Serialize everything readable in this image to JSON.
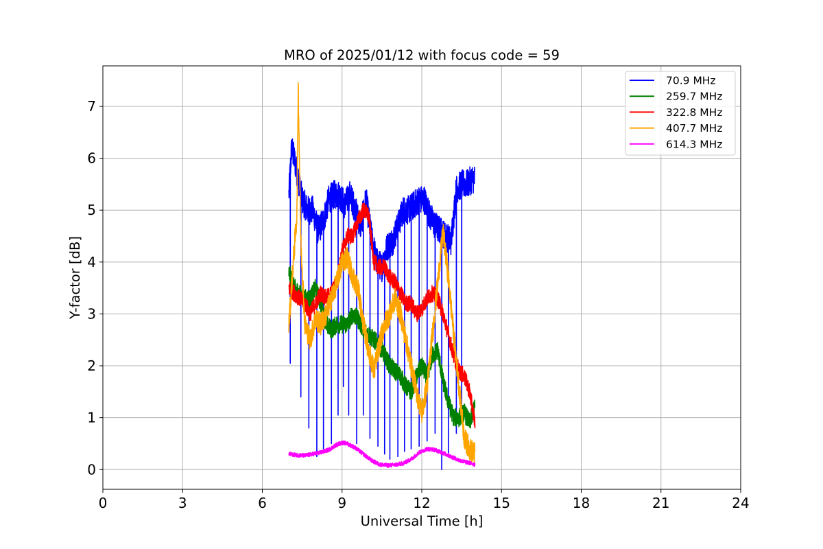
{
  "chart_data": {
    "type": "line",
    "title": "MRO of 2025/01/12 with focus code = 59",
    "xlabel": "Universal Time [h]",
    "ylabel": "Y-factor [dB]",
    "xlim": [
      0,
      24
    ],
    "ylim": [
      -0.38,
      7.78
    ],
    "xticks": [
      0,
      3,
      6,
      9,
      12,
      15,
      18,
      21,
      24
    ],
    "yticks": [
      0,
      1,
      2,
      3,
      4,
      5,
      6,
      7
    ],
    "grid": true,
    "legend_position": "top-right",
    "series": [
      {
        "name": " 70.9 MHz",
        "color": "#0000ff",
        "x": [
          7.0,
          7.1,
          7.2,
          7.35,
          7.5,
          7.7,
          7.9,
          8.1,
          8.3,
          8.5,
          8.7,
          8.9,
          9.1,
          9.3,
          9.5,
          9.7,
          9.9,
          10.1,
          10.3,
          10.5,
          10.7,
          10.9,
          11.1,
          11.3,
          11.5,
          11.7,
          11.9,
          12.1,
          12.3,
          12.5,
          12.7,
          12.9,
          13.1,
          13.3,
          13.5,
          13.7,
          13.9,
          14.0
        ],
        "y": [
          5.3,
          6.2,
          6.0,
          5.6,
          5.2,
          5.0,
          5.0,
          4.6,
          4.8,
          5.2,
          5.3,
          5.3,
          5.1,
          5.3,
          5.0,
          4.7,
          5.2,
          4.5,
          4.0,
          3.9,
          4.3,
          4.4,
          4.7,
          5.0,
          5.0,
          5.1,
          5.2,
          5.2,
          4.9,
          4.7,
          4.6,
          4.5,
          4.4,
          5.4,
          5.5,
          5.5,
          5.6,
          5.6
        ],
        "dips": [
          [
            7.05,
            2.05
          ],
          [
            7.45,
            1.4
          ],
          [
            7.75,
            0.8
          ],
          [
            8.05,
            0.25
          ],
          [
            8.3,
            0.4
          ],
          [
            8.6,
            0.5
          ],
          [
            8.85,
            1.05
          ],
          [
            9.05,
            1.6
          ],
          [
            9.25,
            1.05
          ],
          [
            9.55,
            0.5
          ],
          [
            9.8,
            1.05
          ],
          [
            10.05,
            0.6
          ],
          [
            10.35,
            0.45
          ],
          [
            10.6,
            0.3
          ],
          [
            10.8,
            0.2
          ],
          [
            11.1,
            0.25
          ],
          [
            11.35,
            0.35
          ],
          [
            11.6,
            0.4
          ],
          [
            11.9,
            0.45
          ],
          [
            12.2,
            0.55
          ],
          [
            12.5,
            0.7
          ],
          [
            12.75,
            0.0
          ],
          [
            13.0,
            0.25
          ],
          [
            13.3,
            0.7
          ],
          [
            13.5,
            0.9
          ]
        ],
        "noise": 0.28
      },
      {
        "name": "259.7 MHz",
        "color": "#008000",
        "x": [
          7.0,
          7.2,
          7.4,
          7.6,
          7.8,
          8.0,
          8.2,
          8.4,
          8.6,
          8.8,
          9.0,
          9.2,
          9.4,
          9.6,
          9.8,
          10.0,
          10.2,
          10.4,
          10.6,
          10.8,
          11.0,
          11.2,
          11.4,
          11.6,
          11.8,
          12.0,
          12.2,
          12.4,
          12.6,
          12.8,
          13.0,
          13.2,
          13.4,
          13.6,
          13.8,
          14.0
        ],
        "y": [
          3.8,
          3.5,
          3.4,
          3.3,
          3.3,
          3.5,
          3.2,
          2.8,
          2.7,
          2.8,
          2.8,
          2.8,
          3.0,
          2.9,
          2.7,
          2.6,
          2.5,
          2.4,
          2.2,
          2.0,
          1.9,
          1.8,
          1.6,
          1.5,
          1.8,
          2.0,
          1.8,
          2.2,
          2.3,
          1.7,
          1.3,
          1.0,
          1.0,
          1.1,
          0.9,
          1.2
        ],
        "noise": 0.18
      },
      {
        "name": "322.8 MHz",
        "color": "#ff0000",
        "x": [
          7.0,
          7.2,
          7.4,
          7.6,
          7.8,
          8.0,
          8.2,
          8.4,
          8.6,
          8.8,
          9.0,
          9.2,
          9.4,
          9.6,
          9.8,
          10.0,
          10.2,
          10.4,
          10.6,
          10.8,
          11.0,
          11.2,
          11.4,
          11.6,
          11.8,
          12.0,
          12.2,
          12.4,
          12.6,
          12.8,
          13.0,
          13.2,
          13.4,
          13.6,
          13.8,
          14.0
        ],
        "y": [
          3.5,
          3.4,
          3.3,
          3.2,
          3.0,
          3.2,
          3.4,
          3.3,
          3.4,
          3.6,
          4.2,
          4.5,
          4.5,
          4.8,
          5.0,
          4.9,
          4.0,
          3.9,
          3.9,
          3.7,
          3.6,
          3.4,
          3.2,
          3.2,
          3.0,
          3.1,
          3.3,
          3.4,
          3.3,
          3.0,
          2.6,
          2.2,
          1.9,
          1.8,
          1.5,
          0.9
        ],
        "noise": 0.16
      },
      {
        "name": "407.7 MHz",
        "color": "#ffa500",
        "x": [
          7.0,
          7.15,
          7.3,
          7.35,
          7.45,
          7.6,
          7.8,
          8.0,
          8.2,
          8.4,
          8.6,
          8.8,
          9.0,
          9.2,
          9.4,
          9.6,
          9.8,
          10.0,
          10.2,
          10.4,
          10.6,
          10.8,
          11.0,
          11.2,
          11.4,
          11.6,
          11.8,
          12.0,
          12.2,
          12.4,
          12.6,
          12.8,
          13.0,
          13.2,
          13.4,
          13.6,
          13.8,
          14.0
        ],
        "y": [
          2.8,
          3.9,
          4.9,
          7.4,
          4.4,
          2.8,
          2.5,
          2.9,
          2.8,
          3.0,
          3.3,
          3.6,
          4.0,
          4.1,
          3.7,
          3.5,
          2.8,
          2.3,
          1.9,
          2.4,
          2.8,
          3.0,
          3.3,
          3.0,
          2.5,
          2.0,
          1.5,
          1.1,
          1.6,
          2.6,
          3.6,
          4.6,
          3.7,
          2.6,
          1.6,
          0.6,
          0.4,
          0.3
        ],
        "noise": 0.22
      },
      {
        "name": "614.3 MHz",
        "color": "#ff00ff",
        "x": [
          7.0,
          7.3,
          7.6,
          7.9,
          8.2,
          8.5,
          8.8,
          9.0,
          9.2,
          9.5,
          9.8,
          10.1,
          10.4,
          10.7,
          11.0,
          11.3,
          11.6,
          11.9,
          12.2,
          12.5,
          12.8,
          13.1,
          13.4,
          13.7,
          14.0
        ],
        "y": [
          0.3,
          0.28,
          0.27,
          0.3,
          0.33,
          0.38,
          0.48,
          0.52,
          0.5,
          0.42,
          0.3,
          0.18,
          0.1,
          0.08,
          0.09,
          0.12,
          0.2,
          0.33,
          0.4,
          0.38,
          0.32,
          0.25,
          0.18,
          0.14,
          0.1
        ],
        "noise": 0.04
      }
    ]
  }
}
